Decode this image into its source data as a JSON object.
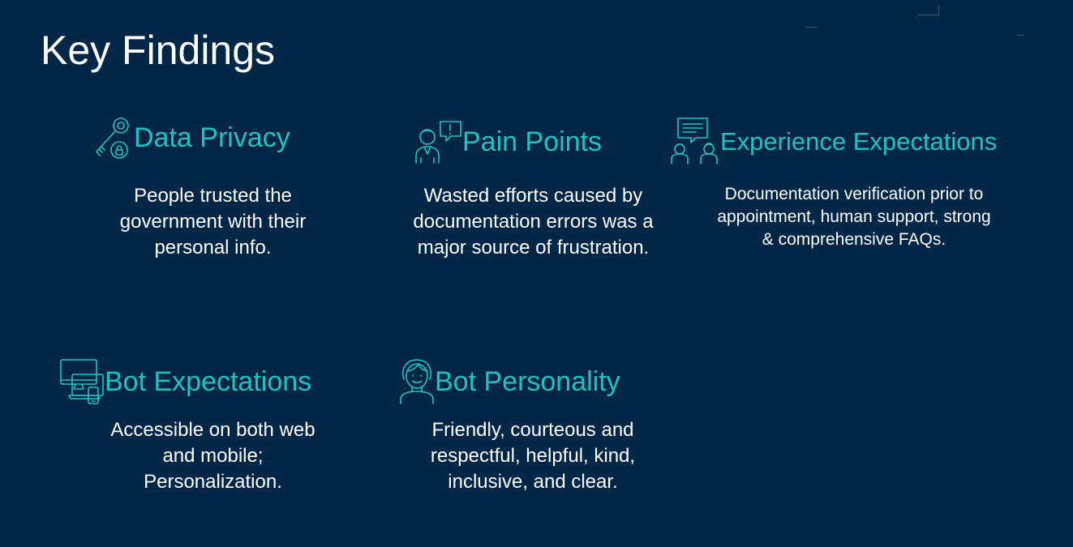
{
  "slide": {
    "title": "Key Findings"
  },
  "findings": [
    {
      "heading": "Data Privacy",
      "icon": "key-lock-icon",
      "body": "People trusted the government with their personal info."
    },
    {
      "heading": "Pain Points",
      "icon": "frustrated-person-icon",
      "body": "Wasted efforts caused by documentation errors was a major source of frustration."
    },
    {
      "heading": "Experience Expectations",
      "icon": "support-chat-icon",
      "body": "Documentation verification prior to appointment, human support, strong & comprehensive FAQs."
    },
    {
      "heading": "Bot Expectations",
      "icon": "devices-icon",
      "body": "Accessible on both web and mobile; Personalization."
    },
    {
      "heading": "Bot Personality",
      "icon": "friendly-person-icon",
      "body": "Friendly, courteous and respectful, helpful, kind, inclusive, and clear."
    }
  ],
  "colors": {
    "background": "#022645",
    "accent": "#1fc2c3",
    "text": "#ffffff"
  }
}
